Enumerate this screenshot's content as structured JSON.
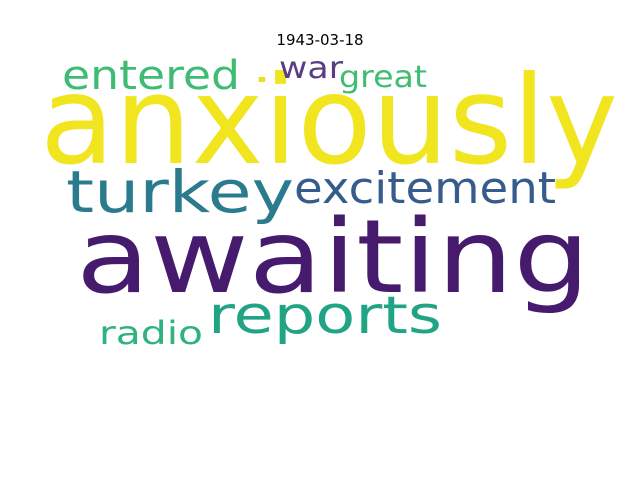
{
  "title": "1943-03-18",
  "words": [
    {
      "text": "anxiously",
      "color": "#f0e51f"
    },
    {
      "text": "awaiting",
      "color": "#461b6e"
    },
    {
      "text": "turkey",
      "color": "#2a7b8e"
    },
    {
      "text": "excitement",
      "color": "#355c8c"
    },
    {
      "text": "reports",
      "color": "#21a486"
    },
    {
      "text": "entered",
      "color": "#3fbc74"
    },
    {
      "text": "war",
      "color": "#5a3d82"
    },
    {
      "text": "great",
      "color": "#40bd73"
    },
    {
      "text": "radio",
      "color": "#2fb37c"
    },
    {
      "text": ".",
      "color": "#e8e11c"
    }
  ]
}
